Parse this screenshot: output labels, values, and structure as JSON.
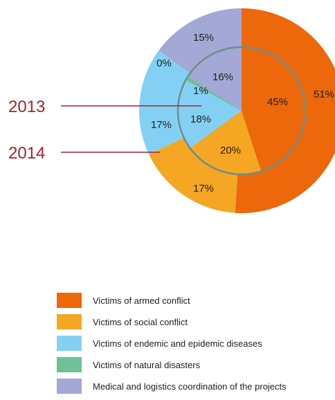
{
  "chart_data": {
    "type": "pie",
    "categories": [
      "Victims of armed conflict",
      "Victims of social conflict",
      "Victims of endemic and epidemic diseases",
      "Victims of natural disasters",
      "Medical and logistics coordination of the projects"
    ],
    "colors": [
      "#ec680a",
      "#f5a623",
      "#84d0f4",
      "#6fbf97",
      "#a3a8d6"
    ],
    "series": [
      {
        "name": "2013",
        "values": [
          45,
          20,
          18,
          1,
          16
        ],
        "labels": [
          "45%",
          "20%",
          "18%",
          "1%",
          "16%"
        ]
      },
      {
        "name": "2014",
        "values": [
          51,
          17,
          17,
          0,
          15
        ],
        "labels": [
          "51%",
          "17%",
          "17%",
          "0%",
          "15%"
        ]
      }
    ],
    "legend_position": "bottom"
  }
}
